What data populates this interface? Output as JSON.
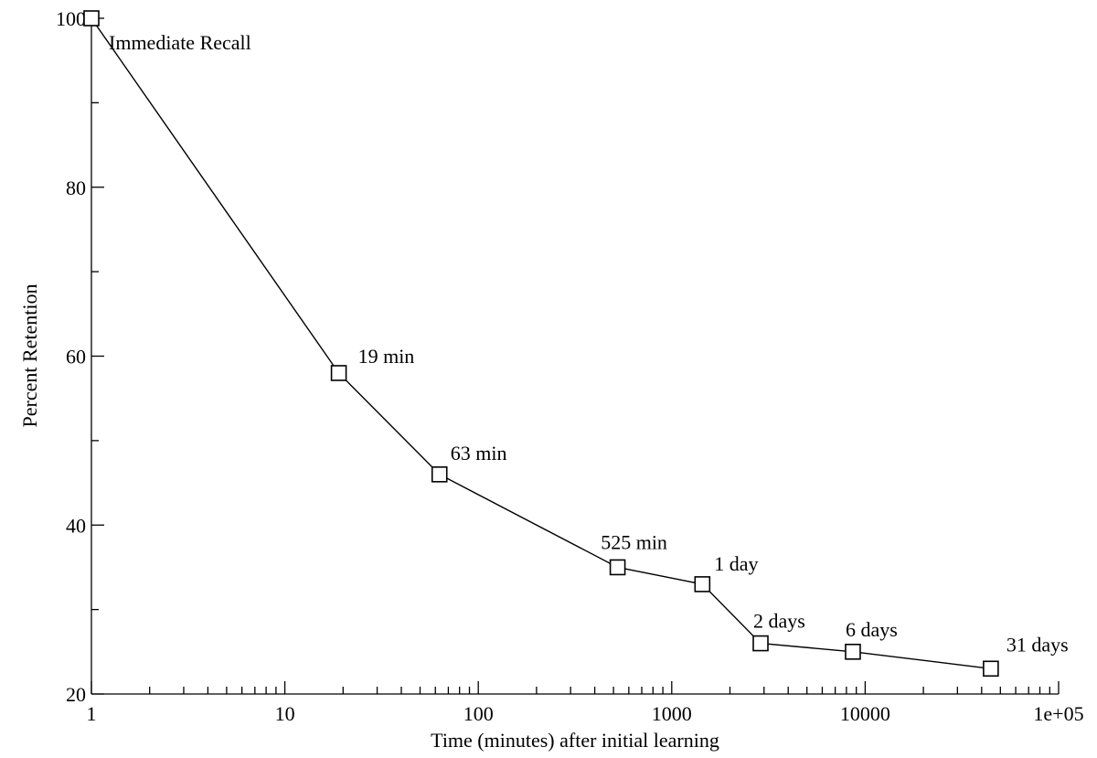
{
  "chart_data": {
    "type": "line",
    "title": "",
    "xlabel": "Time (minutes) after initial learning",
    "ylabel": "Percent Retention",
    "x_scale": "log",
    "xlim": [
      1,
      100000
    ],
    "ylim": [
      20,
      100
    ],
    "grid": false,
    "x_ticks": [
      1,
      10,
      100,
      1000,
      10000,
      100000
    ],
    "x_tick_labels": [
      "1",
      "10",
      "100",
      "1000",
      "10000",
      "1e+05"
    ],
    "y_ticks": [
      20,
      40,
      60,
      80,
      100
    ],
    "y_tick_labels": [
      "20",
      "40",
      "60",
      "80",
      "100"
    ],
    "series": [
      {
        "marker": "open-square",
        "color": "#000000",
        "points": [
          {
            "x": 1,
            "y": 100,
            "label": "Immediate Recall"
          },
          {
            "x": 19,
            "y": 58,
            "label": "19 min"
          },
          {
            "x": 63,
            "y": 46,
            "label": "63 min"
          },
          {
            "x": 525,
            "y": 35,
            "label": "525 min"
          },
          {
            "x": 1440,
            "y": 33,
            "label": "1 day"
          },
          {
            "x": 2880,
            "y": 26,
            "label": "2 days"
          },
          {
            "x": 8640,
            "y": 25,
            "label": "6 days"
          },
          {
            "x": 44640,
            "y": 23,
            "label": "31 days"
          }
        ]
      }
    ]
  }
}
